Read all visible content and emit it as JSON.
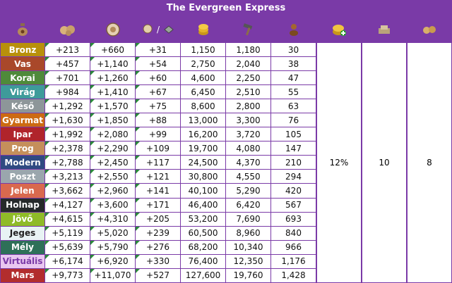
{
  "title": "The Evergreen Express",
  "header_icons": [
    {
      "name": "sack-icon"
    },
    {
      "name": "goods-icon"
    },
    {
      "name": "medal-icon"
    },
    {
      "name": "blueprint-icon",
      "separator": "/"
    },
    {
      "name": "coins-icon"
    },
    {
      "name": "hammer-icon"
    },
    {
      "name": "population-icon"
    },
    {
      "name": "coin-boost-icon"
    },
    {
      "name": "supplies-boost-icon"
    },
    {
      "name": "goods-boost-icon"
    }
  ],
  "rows": [
    {
      "era": "Bronz",
      "color": "#b8900b",
      "c1": "+213",
      "c2": "+660",
      "c3": "+31",
      "c4": "1,150",
      "c5": "1,180",
      "c6": "30"
    },
    {
      "era": "Vas",
      "color": "#a9482a",
      "c1": "+457",
      "c2": "+1,140",
      "c3": "+54",
      "c4": "2,750",
      "c5": "2,040",
      "c6": "38"
    },
    {
      "era": "Korai",
      "color": "#4f8a3a",
      "c1": "+701",
      "c2": "+1,260",
      "c3": "+60",
      "c4": "4,600",
      "c5": "2,250",
      "c6": "47"
    },
    {
      "era": "Virág",
      "color": "#3e9b9a",
      "c1": "+984",
      "c2": "+1,410",
      "c3": "+67",
      "c4": "6,450",
      "c5": "2,510",
      "c6": "55"
    },
    {
      "era": "Késő",
      "color": "#8d9699",
      "c1": "+1,292",
      "c2": "+1,570",
      "c3": "+75",
      "c4": "8,600",
      "c5": "2,800",
      "c6": "63"
    },
    {
      "era": "Gyarmat",
      "color": "#cc6a12",
      "c1": "+1,630",
      "c2": "+1,850",
      "c3": "+88",
      "c4": "13,000",
      "c5": "3,300",
      "c6": "76"
    },
    {
      "era": "Ipar",
      "color": "#b0242b",
      "c1": "+1,992",
      "c2": "+2,080",
      "c3": "+99",
      "c4": "16,200",
      "c5": "3,720",
      "c6": "105"
    },
    {
      "era": "Prog",
      "color": "#c58f5b",
      "c1": "+2,378",
      "c2": "+2,290",
      "c3": "+109",
      "c4": "19,700",
      "c5": "4,080",
      "c6": "147"
    },
    {
      "era": "Modern",
      "color": "#2f4a82",
      "c1": "+2,788",
      "c2": "+2,450",
      "c3": "+117",
      "c4": "24,500",
      "c5": "4,370",
      "c6": "210"
    },
    {
      "era": "Poszt",
      "color": "#9aa6ad",
      "c1": "+3,213",
      "c2": "+2,550",
      "c3": "+121",
      "c4": "30,800",
      "c5": "4,550",
      "c6": "294"
    },
    {
      "era": "Jelen",
      "color": "#d9694e",
      "c1": "+3,662",
      "c2": "+2,960",
      "c3": "+141",
      "c4": "40,100",
      "c5": "5,290",
      "c6": "420"
    },
    {
      "era": "Holnap",
      "color": "#25292a",
      "c1": "+4,127",
      "c2": "+3,600",
      "c3": "+171",
      "c4": "46,400",
      "c5": "6,420",
      "c6": "567"
    },
    {
      "era": "Jövő",
      "color": "#8fbb28",
      "c1": "+4,615",
      "c2": "+4,310",
      "c3": "+205",
      "c4": "53,200",
      "c5": "7,690",
      "c6": "693"
    },
    {
      "era": "Jeges",
      "color": "#e8f3f4",
      "textColor": "#222",
      "c1": "+5,119",
      "c2": "+5,020",
      "c3": "+239",
      "c4": "60,500",
      "c5": "8,960",
      "c6": "840"
    },
    {
      "era": "Mély",
      "color": "#2e7058",
      "c1": "+5,639",
      "c2": "+5,790",
      "c3": "+276",
      "c4": "68,200",
      "c5": "10,340",
      "c6": "966"
    },
    {
      "era": "Virtuális",
      "color": "#e9c7f0",
      "textColor": "#7a3aa7",
      "c1": "+6,174",
      "c2": "+6,920",
      "c3": "+330",
      "c4": "76,400",
      "c5": "12,350",
      "c6": "1,176"
    },
    {
      "era": "Mars",
      "color": "#b22d2d",
      "c1": "+9,773",
      "c2": "+11,070",
      "c3": "+527",
      "c4": "127,600",
      "c5": "19,760",
      "c6": "1,428"
    }
  ],
  "boosts": {
    "coin": "12%",
    "supplies": "10",
    "goods": "8"
  }
}
